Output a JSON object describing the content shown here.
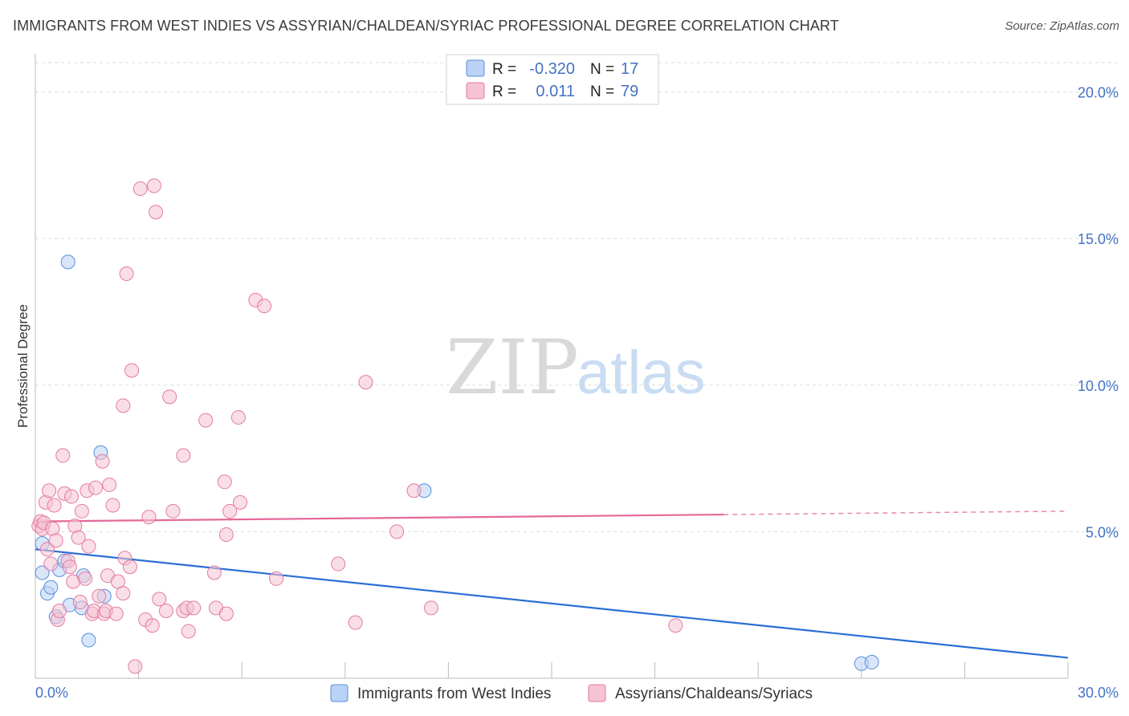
{
  "title": "IMMIGRANTS FROM WEST INDIES VS ASSYRIAN/CHALDEAN/SYRIAC PROFESSIONAL DEGREE CORRELATION CHART",
  "source": "Source: ZipAtlas.com",
  "watermark": {
    "zip": "ZIP",
    "atlas": "atlas"
  },
  "colors": {
    "blue": "#5b8fd9",
    "blue_fill": "#b9d2f5",
    "blue_line": "#2a6fd6",
    "pink": "#e37ba0",
    "pink_fill": "#f6c3d3",
    "pink_line": "#e5689a",
    "tick_text": "#4472c4",
    "grid": "#dddddd"
  },
  "legend_top": [
    {
      "r_label": "R =",
      "r_value": "-0.320",
      "n_label": "N =",
      "n_value": "17",
      "color": "blue"
    },
    {
      "r_label": "R =",
      "r_value": "0.011",
      "n_label": "N =",
      "n_value": "79",
      "color": "pink"
    }
  ],
  "chart_data": {
    "type": "scatter",
    "title": "IMMIGRANTS FROM WEST INDIES VS ASSYRIAN/CHALDEAN/SYRIAC PROFESSIONAL DEGREE CORRELATION CHART",
    "xlabel": "",
    "ylabel": "Professional Degree",
    "xlim": [
      0,
      30
    ],
    "ylim": [
      0,
      21
    ],
    "x_tick_labels": [
      "0.0%",
      "30.0%"
    ],
    "y_ticks": [
      5,
      10,
      15,
      20
    ],
    "y_tick_labels": [
      "5.0%",
      "10.0%",
      "15.0%",
      "20.0%"
    ],
    "grid": true,
    "legend_position": "bottom",
    "series": [
      {
        "name": "Immigrants from West Indies",
        "color": "blue",
        "trend": {
          "x": [
            0,
            30
          ],
          "y": [
            4.4,
            0.7
          ],
          "dashed_from": null
        },
        "points": [
          [
            0.2,
            4.6
          ],
          [
            0.2,
            3.6
          ],
          [
            0.35,
            2.9
          ],
          [
            0.45,
            3.1
          ],
          [
            0.6,
            2.1
          ],
          [
            0.7,
            3.7
          ],
          [
            0.85,
            4.0
          ],
          [
            0.95,
            14.2
          ],
          [
            1.0,
            2.5
          ],
          [
            1.35,
            2.4
          ],
          [
            1.4,
            3.5
          ],
          [
            1.55,
            1.3
          ],
          [
            1.9,
            7.7
          ],
          [
            2.0,
            2.8
          ],
          [
            11.3,
            6.4
          ],
          [
            24.0,
            0.5
          ],
          [
            24.3,
            0.55
          ]
        ]
      },
      {
        "name": "Assyrians/Chaldeans/Syriacs",
        "color": "pink",
        "trend": {
          "x": [
            0,
            30
          ],
          "y": [
            5.35,
            5.7
          ],
          "dashed_from": 20
        },
        "points": [
          [
            0.1,
            5.2
          ],
          [
            0.15,
            5.35
          ],
          [
            0.2,
            5.1
          ],
          [
            0.25,
            5.3
          ],
          [
            0.3,
            6.0
          ],
          [
            0.35,
            4.4
          ],
          [
            0.4,
            6.4
          ],
          [
            0.45,
            3.9
          ],
          [
            0.5,
            5.1
          ],
          [
            0.55,
            5.9
          ],
          [
            0.6,
            4.7
          ],
          [
            0.65,
            2.0
          ],
          [
            0.7,
            2.3
          ],
          [
            0.8,
            7.6
          ],
          [
            0.85,
            6.3
          ],
          [
            0.95,
            4.0
          ],
          [
            1.0,
            3.8
          ],
          [
            1.05,
            6.2
          ],
          [
            1.1,
            3.3
          ],
          [
            1.15,
            5.2
          ],
          [
            1.25,
            4.8
          ],
          [
            1.3,
            2.6
          ],
          [
            1.35,
            5.7
          ],
          [
            1.45,
            3.4
          ],
          [
            1.5,
            6.4
          ],
          [
            1.55,
            4.5
          ],
          [
            1.65,
            2.2
          ],
          [
            1.7,
            2.3
          ],
          [
            1.75,
            6.5
          ],
          [
            1.85,
            2.8
          ],
          [
            1.95,
            7.4
          ],
          [
            2.0,
            2.2
          ],
          [
            2.05,
            2.3
          ],
          [
            2.1,
            3.5
          ],
          [
            2.15,
            6.6
          ],
          [
            2.25,
            5.9
          ],
          [
            2.35,
            2.2
          ],
          [
            2.4,
            3.3
          ],
          [
            2.55,
            2.9
          ],
          [
            2.55,
            9.3
          ],
          [
            2.6,
            4.1
          ],
          [
            2.65,
            13.8
          ],
          [
            2.75,
            3.8
          ],
          [
            2.8,
            10.5
          ],
          [
            2.9,
            0.4
          ],
          [
            3.05,
            16.7
          ],
          [
            3.2,
            2.0
          ],
          [
            3.3,
            5.5
          ],
          [
            3.4,
            1.8
          ],
          [
            3.45,
            16.8
          ],
          [
            3.5,
            15.9
          ],
          [
            3.6,
            2.7
          ],
          [
            3.8,
            2.3
          ],
          [
            3.9,
            9.6
          ],
          [
            4.0,
            5.7
          ],
          [
            4.3,
            2.3
          ],
          [
            4.3,
            7.6
          ],
          [
            4.4,
            2.4
          ],
          [
            4.45,
            1.6
          ],
          [
            4.6,
            2.4
          ],
          [
            4.95,
            8.8
          ],
          [
            5.2,
            3.6
          ],
          [
            5.25,
            2.4
          ],
          [
            5.5,
            6.7
          ],
          [
            5.55,
            2.2
          ],
          [
            5.55,
            4.9
          ],
          [
            5.65,
            5.7
          ],
          [
            5.9,
            8.9
          ],
          [
            5.95,
            6.0
          ],
          [
            6.4,
            12.9
          ],
          [
            6.65,
            12.7
          ],
          [
            7.0,
            3.4
          ],
          [
            8.8,
            3.9
          ],
          [
            9.3,
            1.9
          ],
          [
            9.6,
            10.1
          ],
          [
            10.5,
            5.0
          ],
          [
            11.0,
            6.4
          ],
          [
            11.5,
            2.4
          ],
          [
            18.6,
            1.8
          ]
        ]
      }
    ]
  }
}
